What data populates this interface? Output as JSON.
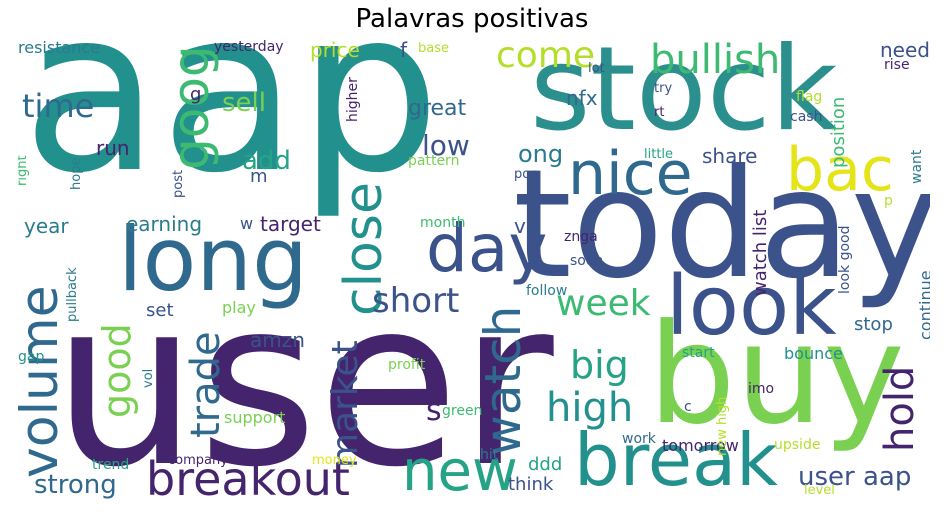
{
  "title": "Palavras positivas",
  "words": {
    "aap": "aap",
    "user": "user",
    "today": "today",
    "stock": "stock",
    "buy": "buy",
    "long": "long",
    "look": "look",
    "break": "break",
    "close": "close",
    "breakout": "breakout",
    "day": "day",
    "nice": "nice",
    "bac": "bac",
    "volume": "volume",
    "new": "new",
    "bullish": "bullish",
    "goog": "goog",
    "watch": "watch",
    "hold": "hold",
    "market": "market",
    "high": "high",
    "good": "good",
    "trade": "trade",
    "short": "short",
    "week": "week",
    "time": "time",
    "big": "big",
    "come": "come",
    "strong": "strong",
    "user_aap": "user aap",
    "sell": "sell",
    "add": "add",
    "low": "low",
    "great": "great",
    "s": "s",
    "ong": "ong",
    "nfx": "nfx",
    "share": "share",
    "watch_list": "watch list",
    "position": "position",
    "amzn": "amzn",
    "earning": "earning",
    "target": "target",
    "year": "year",
    "price": "price",
    "resistance": "resistance",
    "yesterday": "yesterday",
    "need": "need",
    "run": "run",
    "set": "set",
    "stop": "stop",
    "continue": "continue",
    "bounce": "bounce",
    "think": "think",
    "ddd": "ddd",
    "tomorrow": "tomorrow",
    "play": "play",
    "support": "support",
    "start": "start",
    "imo": "imo",
    "look_good": "look good",
    "higher": "higher",
    "pullback": "pullback",
    "hope": "hope",
    "right": "right",
    "post": "post",
    "pattern": "pattern",
    "month": "month",
    "znga": "znga",
    "soon": "soon",
    "follow": "follow",
    "profit": "profit",
    "green": "green",
    "work": "work",
    "hit": "hit",
    "money": "money",
    "company": "company",
    "trend": "trend",
    "vol": "vol",
    "gap": "gap",
    "upside": "upside",
    "level": "level",
    "new_high": "new high",
    "flag": "flag",
    "cash": "cash",
    "rise": "rise",
    "want": "want",
    "base": "base",
    "lot": "lot",
    "try": "try",
    "rt": "rt",
    "little": "little",
    "pop": "pop",
    "f": "f",
    "g": "g",
    "m": "m",
    "w": "w",
    "p": "p",
    "c": "c",
    "v": "v"
  },
  "colors": {
    "dark_purple": "#45246e",
    "purple": "#473a83",
    "indigo": "#3b528b",
    "blue": "#30698e",
    "teal_blue": "#2b7b8e",
    "teal": "#22908d",
    "teal_green": "#26a386",
    "green": "#3cba71",
    "light_green": "#7ad151",
    "lime": "#b5de2b",
    "yellow": "#e5e419"
  }
}
